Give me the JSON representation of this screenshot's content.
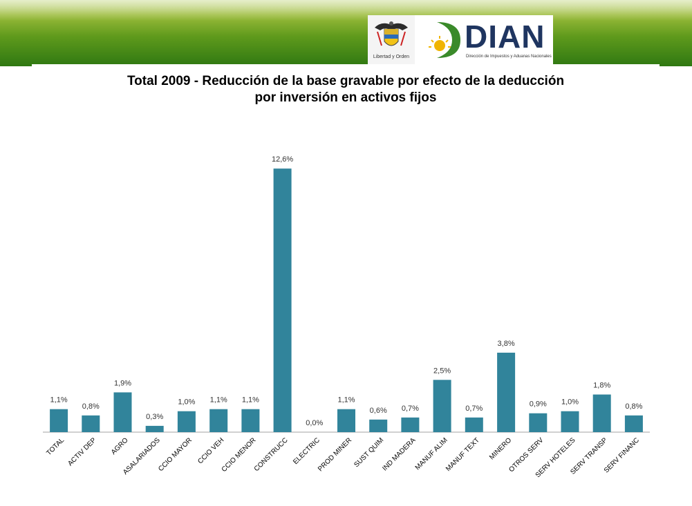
{
  "header": {
    "crest_caption": "Libertad y Orden",
    "brand_name": "DIAN",
    "brand_subtitle": "Dirección de Impuestos y Aduanas Nacionales",
    "colors": {
      "banner": "#4f8f1c",
      "brand": "#1f3560",
      "brand_green": "#3a8a2a"
    }
  },
  "chart_data": {
    "type": "bar",
    "title": "Total 2009 - Reducción de la base gravable por efecto de la deducción por inversión en activos fijos",
    "title_lines": [
      "Total 2009 - Reducción de la base gravable por efecto de la deducción",
      "por inversión en activos fijos"
    ],
    "categories": [
      "TOTAL",
      "ACTIV DEP",
      "AGRO",
      "ASALARIADOS",
      "CCIO MAYOR",
      "CCIO VEH",
      "CCIO MENOR",
      "CONSTRUCC",
      "ELECTRIC",
      "PROD MINER",
      "SUST QUIM",
      "IND MADERA",
      "MANUF ALIM",
      "MANUF TEXT",
      "MINERO",
      "OTROS SERV",
      "SERV HOTELES",
      "SERV TRANSP",
      "SERV FINANC"
    ],
    "values": [
      1.1,
      0.8,
      1.9,
      0.3,
      1.0,
      1.1,
      1.1,
      12.6,
      0.0,
      1.1,
      0.6,
      0.7,
      2.5,
      0.7,
      3.8,
      0.9,
      1.0,
      1.8,
      0.8
    ],
    "data_labels": [
      "1,1%",
      "0,8%",
      "1,9%",
      "0,3%",
      "1,0%",
      "1,1%",
      "1,1%",
      "12,6%",
      "0,0%",
      "1,1%",
      "0,6%",
      "0,7%",
      "2,5%",
      "0,7%",
      "3,8%",
      "0,9%",
      "1,0%",
      "1,8%",
      "0,8%"
    ],
    "unit": "%",
    "bar_color": "#31849b",
    "axis_color": "#a0a0a0",
    "grid": false,
    "legend": "none",
    "xlabel": "",
    "ylabel": ""
  }
}
